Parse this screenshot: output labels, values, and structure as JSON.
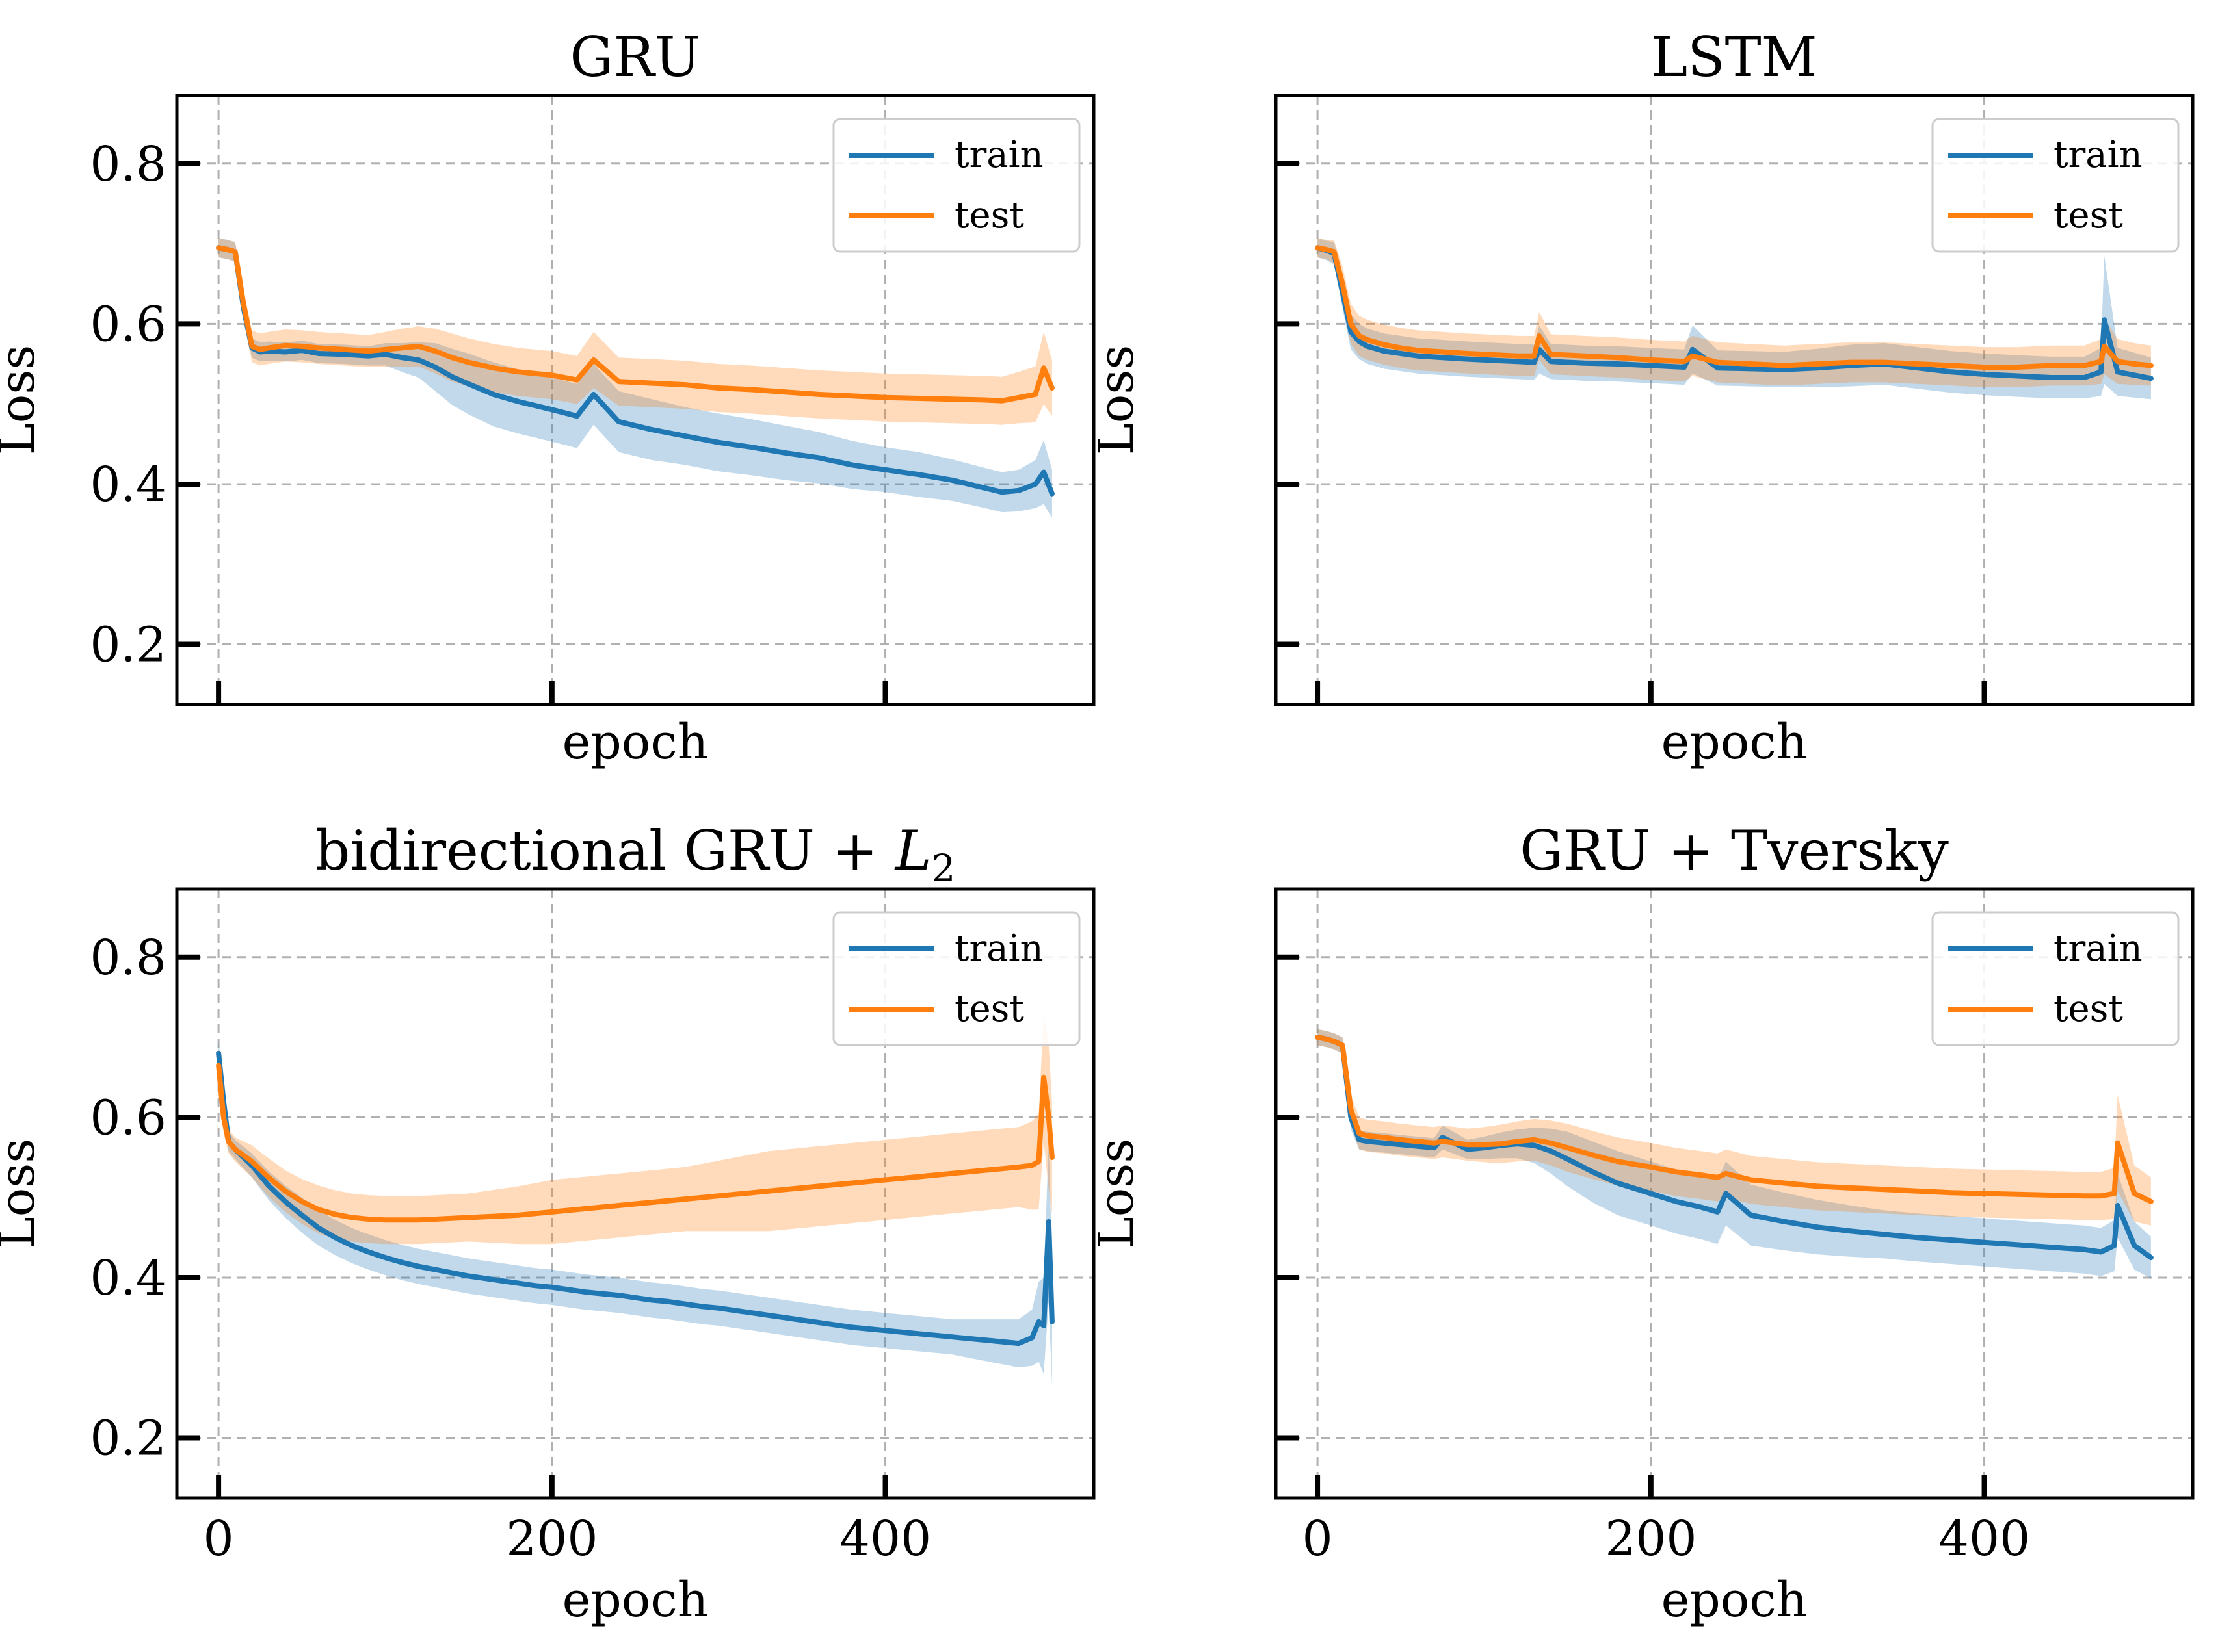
{
  "figure": {
    "background": "#ffffff",
    "colors": {
      "train": "#1f77b4",
      "test": "#ff7f0e",
      "grid": "#b0b0b0"
    }
  },
  "chart_data": [
    {
      "type": "line",
      "title": "GRU",
      "xlabel": "epoch",
      "ylabel": "Loss",
      "xlim": [
        -25,
        525
      ],
      "ylim": [
        0.125,
        0.885
      ],
      "xticks": [
        0,
        200,
        400
      ],
      "yticks": [
        0.2,
        0.4,
        0.6,
        0.8
      ],
      "xtick_labels_visible": false,
      "ytick_labels_visible": true,
      "grid": true,
      "legend": "top-right",
      "x": [
        0,
        5,
        10,
        15,
        20,
        25,
        30,
        40,
        50,
        60,
        75,
        90,
        100,
        110,
        120,
        130,
        140,
        150,
        165,
        180,
        200,
        215,
        225,
        240,
        260,
        280,
        300,
        320,
        340,
        360,
        380,
        400,
        420,
        440,
        460,
        470,
        480,
        490,
        495,
        500
      ],
      "series": [
        {
          "name": "train",
          "color": "#1f77b4",
          "values": [
            0.695,
            0.693,
            0.69,
            0.62,
            0.57,
            0.565,
            0.566,
            0.565,
            0.567,
            0.563,
            0.562,
            0.56,
            0.562,
            0.558,
            0.555,
            0.546,
            0.534,
            0.525,
            0.512,
            0.503,
            0.493,
            0.485,
            0.512,
            0.478,
            0.468,
            0.46,
            0.452,
            0.446,
            0.439,
            0.433,
            0.424,
            0.418,
            0.412,
            0.405,
            0.395,
            0.39,
            0.392,
            0.4,
            0.415,
            0.388
          ],
          "band": [
            0.012,
            0.012,
            0.012,
            0.015,
            0.012,
            0.012,
            0.012,
            0.012,
            0.012,
            0.012,
            0.012,
            0.012,
            0.014,
            0.018,
            0.022,
            0.03,
            0.035,
            0.038,
            0.04,
            0.04,
            0.04,
            0.04,
            0.038,
            0.038,
            0.038,
            0.036,
            0.036,
            0.035,
            0.034,
            0.032,
            0.03,
            0.028,
            0.028,
            0.026,
            0.025,
            0.025,
            0.026,
            0.03,
            0.04,
            0.03
          ]
        },
        {
          "name": "test",
          "color": "#ff7f0e",
          "values": [
            0.695,
            0.693,
            0.69,
            0.625,
            0.572,
            0.568,
            0.57,
            0.573,
            0.572,
            0.57,
            0.568,
            0.566,
            0.568,
            0.57,
            0.572,
            0.566,
            0.558,
            0.552,
            0.545,
            0.54,
            0.536,
            0.53,
            0.555,
            0.528,
            0.526,
            0.524,
            0.52,
            0.518,
            0.515,
            0.512,
            0.51,
            0.508,
            0.507,
            0.506,
            0.505,
            0.504,
            0.508,
            0.512,
            0.545,
            0.52
          ],
          "band": [
            0.012,
            0.012,
            0.012,
            0.018,
            0.02,
            0.02,
            0.02,
            0.02,
            0.02,
            0.02,
            0.02,
            0.02,
            0.022,
            0.024,
            0.025,
            0.028,
            0.03,
            0.03,
            0.03,
            0.03,
            0.03,
            0.03,
            0.035,
            0.03,
            0.03,
            0.03,
            0.03,
            0.03,
            0.03,
            0.03,
            0.03,
            0.03,
            0.03,
            0.03,
            0.03,
            0.03,
            0.032,
            0.035,
            0.045,
            0.035
          ]
        }
      ]
    },
    {
      "type": "line",
      "title": "LSTM",
      "xlabel": "epoch",
      "ylabel": "Loss",
      "xlim": [
        -25,
        525
      ],
      "ylim": [
        0.125,
        0.885
      ],
      "xticks": [
        0,
        200,
        400
      ],
      "yticks": [
        0.2,
        0.4,
        0.6,
        0.8
      ],
      "xtick_labels_visible": false,
      "ytick_labels_visible": false,
      "grid": true,
      "legend": "top-right",
      "x": [
        0,
        5,
        10,
        15,
        20,
        25,
        30,
        40,
        50,
        60,
        75,
        90,
        100,
        110,
        120,
        130,
        133,
        140,
        160,
        180,
        200,
        210,
        220,
        225,
        240,
        260,
        280,
        300,
        320,
        340,
        360,
        380,
        400,
        420,
        440,
        460,
        470,
        472,
        480,
        490,
        500
      ],
      "series": [
        {
          "name": "train",
          "color": "#1f77b4",
          "values": [
            0.695,
            0.692,
            0.688,
            0.64,
            0.59,
            0.578,
            0.572,
            0.566,
            0.563,
            0.56,
            0.558,
            0.556,
            0.555,
            0.554,
            0.553,
            0.552,
            0.568,
            0.553,
            0.551,
            0.55,
            0.548,
            0.547,
            0.546,
            0.568,
            0.545,
            0.544,
            0.543,
            0.545,
            0.548,
            0.55,
            0.545,
            0.54,
            0.537,
            0.535,
            0.533,
            0.533,
            0.54,
            0.605,
            0.54,
            0.536,
            0.532
          ],
          "band": [
            0.012,
            0.012,
            0.014,
            0.02,
            0.022,
            0.022,
            0.022,
            0.022,
            0.022,
            0.022,
            0.022,
            0.022,
            0.022,
            0.022,
            0.022,
            0.022,
            0.03,
            0.022,
            0.022,
            0.022,
            0.022,
            0.022,
            0.022,
            0.03,
            0.022,
            0.022,
            0.022,
            0.024,
            0.026,
            0.026,
            0.026,
            0.026,
            0.026,
            0.026,
            0.026,
            0.026,
            0.03,
            0.08,
            0.03,
            0.028,
            0.026
          ]
        },
        {
          "name": "test",
          "color": "#ff7f0e",
          "values": [
            0.695,
            0.693,
            0.69,
            0.65,
            0.6,
            0.585,
            0.58,
            0.574,
            0.57,
            0.567,
            0.565,
            0.563,
            0.562,
            0.561,
            0.56,
            0.56,
            0.585,
            0.562,
            0.56,
            0.558,
            0.555,
            0.554,
            0.553,
            0.56,
            0.552,
            0.55,
            0.548,
            0.55,
            0.552,
            0.552,
            0.55,
            0.548,
            0.546,
            0.546,
            0.548,
            0.548,
            0.553,
            0.572,
            0.553,
            0.55,
            0.548
          ],
          "band": [
            0.012,
            0.012,
            0.014,
            0.022,
            0.025,
            0.025,
            0.025,
            0.025,
            0.025,
            0.025,
            0.025,
            0.025,
            0.025,
            0.025,
            0.025,
            0.025,
            0.03,
            0.025,
            0.025,
            0.025,
            0.025,
            0.025,
            0.025,
            0.025,
            0.025,
            0.025,
            0.025,
            0.025,
            0.025,
            0.025,
            0.025,
            0.025,
            0.025,
            0.025,
            0.025,
            0.025,
            0.028,
            0.035,
            0.028,
            0.026,
            0.025
          ]
        }
      ]
    },
    {
      "type": "line",
      "title": "bidirectional GRU + L2",
      "xlabel": "epoch",
      "ylabel": "Loss",
      "xlim": [
        -25,
        525
      ],
      "ylim": [
        0.125,
        0.885
      ],
      "xticks": [
        0,
        200,
        400
      ],
      "yticks": [
        0.2,
        0.4,
        0.6,
        0.8
      ],
      "xtick_labels_visible": true,
      "ytick_labels_visible": true,
      "grid": true,
      "legend": "top-right",
      "x": [
        0,
        3,
        6,
        10,
        20,
        30,
        40,
        50,
        60,
        70,
        80,
        90,
        100,
        110,
        120,
        130,
        140,
        150,
        160,
        170,
        180,
        190,
        200,
        210,
        220,
        230,
        240,
        250,
        260,
        270,
        280,
        290,
        300,
        310,
        320,
        330,
        340,
        350,
        360,
        370,
        380,
        390,
        400,
        410,
        420,
        430,
        440,
        450,
        460,
        470,
        480,
        488,
        492,
        495,
        498,
        500
      ],
      "series": [
        {
          "name": "train",
          "color": "#1f77b4",
          "values": [
            0.68,
            0.62,
            0.57,
            0.56,
            0.54,
            0.515,
            0.495,
            0.478,
            0.462,
            0.45,
            0.44,
            0.432,
            0.425,
            0.419,
            0.414,
            0.41,
            0.406,
            0.402,
            0.399,
            0.396,
            0.393,
            0.39,
            0.388,
            0.385,
            0.382,
            0.38,
            0.378,
            0.375,
            0.372,
            0.37,
            0.367,
            0.364,
            0.362,
            0.359,
            0.356,
            0.353,
            0.35,
            0.347,
            0.344,
            0.341,
            0.338,
            0.336,
            0.334,
            0.332,
            0.33,
            0.328,
            0.326,
            0.324,
            0.322,
            0.32,
            0.318,
            0.325,
            0.345,
            0.34,
            0.47,
            0.345
          ],
          "band": [
            0.015,
            0.018,
            0.012,
            0.012,
            0.015,
            0.018,
            0.02,
            0.022,
            0.022,
            0.022,
            0.022,
            0.022,
            0.022,
            0.022,
            0.022,
            0.022,
            0.022,
            0.022,
            0.022,
            0.022,
            0.022,
            0.022,
            0.022,
            0.022,
            0.022,
            0.022,
            0.022,
            0.022,
            0.022,
            0.022,
            0.022,
            0.022,
            0.022,
            0.022,
            0.022,
            0.022,
            0.022,
            0.022,
            0.022,
            0.022,
            0.022,
            0.022,
            0.022,
            0.022,
            0.022,
            0.022,
            0.022,
            0.024,
            0.026,
            0.028,
            0.03,
            0.035,
            0.05,
            0.06,
            0.1,
            0.08
          ]
        },
        {
          "name": "test",
          "color": "#ff7f0e",
          "values": [
            0.665,
            0.6,
            0.57,
            0.56,
            0.545,
            0.525,
            0.508,
            0.495,
            0.485,
            0.479,
            0.475,
            0.473,
            0.472,
            0.472,
            0.472,
            0.473,
            0.474,
            0.475,
            0.476,
            0.477,
            0.478,
            0.48,
            0.482,
            0.484,
            0.486,
            0.488,
            0.49,
            0.492,
            0.494,
            0.496,
            0.498,
            0.5,
            0.502,
            0.504,
            0.506,
            0.508,
            0.51,
            0.512,
            0.514,
            0.516,
            0.518,
            0.52,
            0.522,
            0.524,
            0.526,
            0.528,
            0.53,
            0.532,
            0.534,
            0.536,
            0.538,
            0.54,
            0.545,
            0.65,
            0.6,
            0.55
          ],
          "band": [
            0.015,
            0.02,
            0.015,
            0.015,
            0.02,
            0.024,
            0.026,
            0.028,
            0.03,
            0.03,
            0.03,
            0.03,
            0.03,
            0.03,
            0.03,
            0.03,
            0.03,
            0.03,
            0.032,
            0.034,
            0.036,
            0.038,
            0.04,
            0.04,
            0.04,
            0.04,
            0.04,
            0.04,
            0.04,
            0.04,
            0.04,
            0.042,
            0.044,
            0.046,
            0.048,
            0.05,
            0.05,
            0.05,
            0.05,
            0.05,
            0.05,
            0.05,
            0.05,
            0.05,
            0.05,
            0.05,
            0.05,
            0.05,
            0.05,
            0.05,
            0.05,
            0.055,
            0.06,
            0.08,
            0.09,
            0.07
          ]
        }
      ]
    },
    {
      "type": "line",
      "title": "GRU + Tversky",
      "xlabel": "epoch",
      "ylabel": "Loss",
      "xlim": [
        -25,
        525
      ],
      "ylim": [
        0.125,
        0.885
      ],
      "xticks": [
        0,
        200,
        400
      ],
      "yticks": [
        0.2,
        0.4,
        0.6,
        0.8
      ],
      "xtick_labels_visible": true,
      "ytick_labels_visible": false,
      "grid": true,
      "legend": "top-right",
      "x": [
        0,
        5,
        10,
        15,
        20,
        25,
        30,
        40,
        50,
        60,
        70,
        75,
        90,
        100,
        110,
        120,
        130,
        140,
        150,
        165,
        180,
        200,
        215,
        230,
        240,
        245,
        260,
        280,
        300,
        320,
        340,
        360,
        380,
        400,
        420,
        440,
        460,
        470,
        478,
        480,
        490,
        500
      ],
      "series": [
        {
          "name": "train",
          "color": "#1f77b4",
          "values": [
            0.7,
            0.698,
            0.695,
            0.69,
            0.6,
            0.572,
            0.57,
            0.568,
            0.566,
            0.564,
            0.562,
            0.575,
            0.56,
            0.562,
            0.565,
            0.567,
            0.565,
            0.558,
            0.548,
            0.532,
            0.518,
            0.505,
            0.495,
            0.488,
            0.482,
            0.505,
            0.478,
            0.47,
            0.463,
            0.458,
            0.454,
            0.45,
            0.447,
            0.444,
            0.441,
            0.438,
            0.435,
            0.432,
            0.44,
            0.49,
            0.44,
            0.425
          ],
          "band": [
            0.01,
            0.01,
            0.01,
            0.01,
            0.015,
            0.012,
            0.012,
            0.012,
            0.012,
            0.012,
            0.012,
            0.015,
            0.012,
            0.014,
            0.016,
            0.018,
            0.022,
            0.028,
            0.034,
            0.038,
            0.04,
            0.04,
            0.04,
            0.04,
            0.04,
            0.04,
            0.038,
            0.036,
            0.034,
            0.032,
            0.03,
            0.03,
            0.03,
            0.03,
            0.03,
            0.03,
            0.03,
            0.03,
            0.032,
            0.04,
            0.03,
            0.026
          ]
        },
        {
          "name": "test",
          "color": "#ff7f0e",
          "values": [
            0.7,
            0.698,
            0.695,
            0.69,
            0.61,
            0.58,
            0.577,
            0.575,
            0.572,
            0.57,
            0.568,
            0.57,
            0.566,
            0.566,
            0.567,
            0.57,
            0.572,
            0.568,
            0.562,
            0.553,
            0.545,
            0.538,
            0.532,
            0.528,
            0.525,
            0.53,
            0.522,
            0.518,
            0.514,
            0.512,
            0.51,
            0.508,
            0.506,
            0.505,
            0.504,
            0.503,
            0.502,
            0.502,
            0.505,
            0.568,
            0.505,
            0.495
          ],
          "band": [
            0.01,
            0.01,
            0.01,
            0.01,
            0.018,
            0.02,
            0.02,
            0.02,
            0.02,
            0.02,
            0.02,
            0.02,
            0.02,
            0.022,
            0.024,
            0.025,
            0.026,
            0.028,
            0.03,
            0.03,
            0.03,
            0.03,
            0.03,
            0.03,
            0.03,
            0.03,
            0.03,
            0.03,
            0.03,
            0.03,
            0.03,
            0.03,
            0.03,
            0.03,
            0.03,
            0.03,
            0.03,
            0.03,
            0.032,
            0.06,
            0.035,
            0.03
          ]
        }
      ]
    }
  ]
}
